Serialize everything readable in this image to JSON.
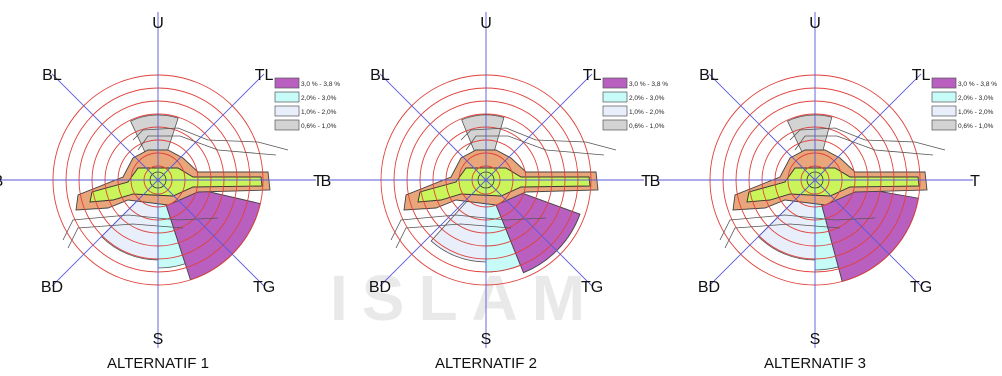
{
  "watermark": "ISLAM",
  "legend": [
    {
      "label": "3,0 % - 3,8 %",
      "color": "#b95fc0"
    },
    {
      "label": "2,0% - 3,0%",
      "color": "#c6fbf7"
    },
    {
      "label": "1,0% - 2,0%",
      "color": "#e8eefa"
    },
    {
      "label": "0,6% - 1,0%",
      "color": "#d3d3d3"
    }
  ],
  "directions": [
    "U",
    "TL",
    "T",
    "TG",
    "S",
    "BD",
    "B",
    "BL"
  ],
  "diagrams": [
    {
      "caption": "ALTERNATIF 1"
    },
    {
      "caption": "ALTERNATIF 2"
    },
    {
      "caption": "ALTERNATIF 3"
    }
  ]
}
